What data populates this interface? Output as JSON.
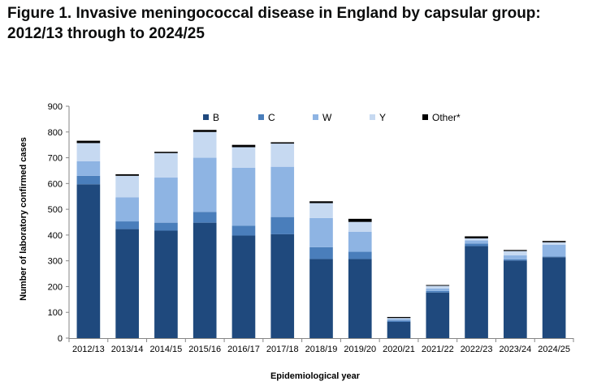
{
  "page": {
    "title": "Figure 1. Invasive meningococcal disease in England by capsular group: 2012/13 through to 2024/25"
  },
  "chart_data": {
    "type": "bar",
    "stacked": true,
    "title": "Figure 1. Invasive meningococcal disease in England by capsular group: 2012/13 through to 2024/25",
    "xlabel": "Epidemiological year",
    "ylabel": "Number of laboratory confirmed cases",
    "ylim": [
      0,
      900
    ],
    "yticks": [
      0,
      100,
      200,
      300,
      400,
      500,
      600,
      700,
      800,
      900
    ],
    "ytick_labels": [
      "0",
      "100",
      "200",
      "300",
      "400",
      "500",
      "600",
      "700",
      "800",
      "900"
    ],
    "grid": false,
    "legend_position": "top",
    "categories": [
      "2012/13",
      "2013/14",
      "2014/15",
      "2015/16",
      "2016/17",
      "2017/18",
      "2018/19",
      "2019/20",
      "2020/21",
      "2021/22",
      "2022/23",
      "2023/24",
      "2024/25"
    ],
    "series": [
      {
        "name": "B",
        "color": "#1f497d",
        "values": [
          597,
          423,
          417,
          448,
          398,
          403,
          307,
          307,
          63,
          177,
          357,
          301,
          314
        ]
      },
      {
        "name": "C",
        "color": "#4a7ebb",
        "values": [
          33,
          30,
          31,
          42,
          38,
          67,
          46,
          28,
          5,
          6,
          10,
          5,
          3
        ]
      },
      {
        "name": "W",
        "color": "#8eb4e3",
        "values": [
          56,
          93,
          175,
          210,
          225,
          195,
          113,
          78,
          6,
          10,
          12,
          15,
          45
        ]
      },
      {
        "name": "Y",
        "color": "#c6d9f1",
        "values": [
          71,
          84,
          95,
          100,
          80,
          90,
          58,
          38,
          4,
          10,
          8,
          17,
          10
        ]
      },
      {
        "name": "Other*",
        "color": "#000000",
        "values": [
          9,
          6,
          5,
          8,
          9,
          5,
          7,
          12,
          4,
          3,
          8,
          4,
          5
        ]
      }
    ]
  }
}
